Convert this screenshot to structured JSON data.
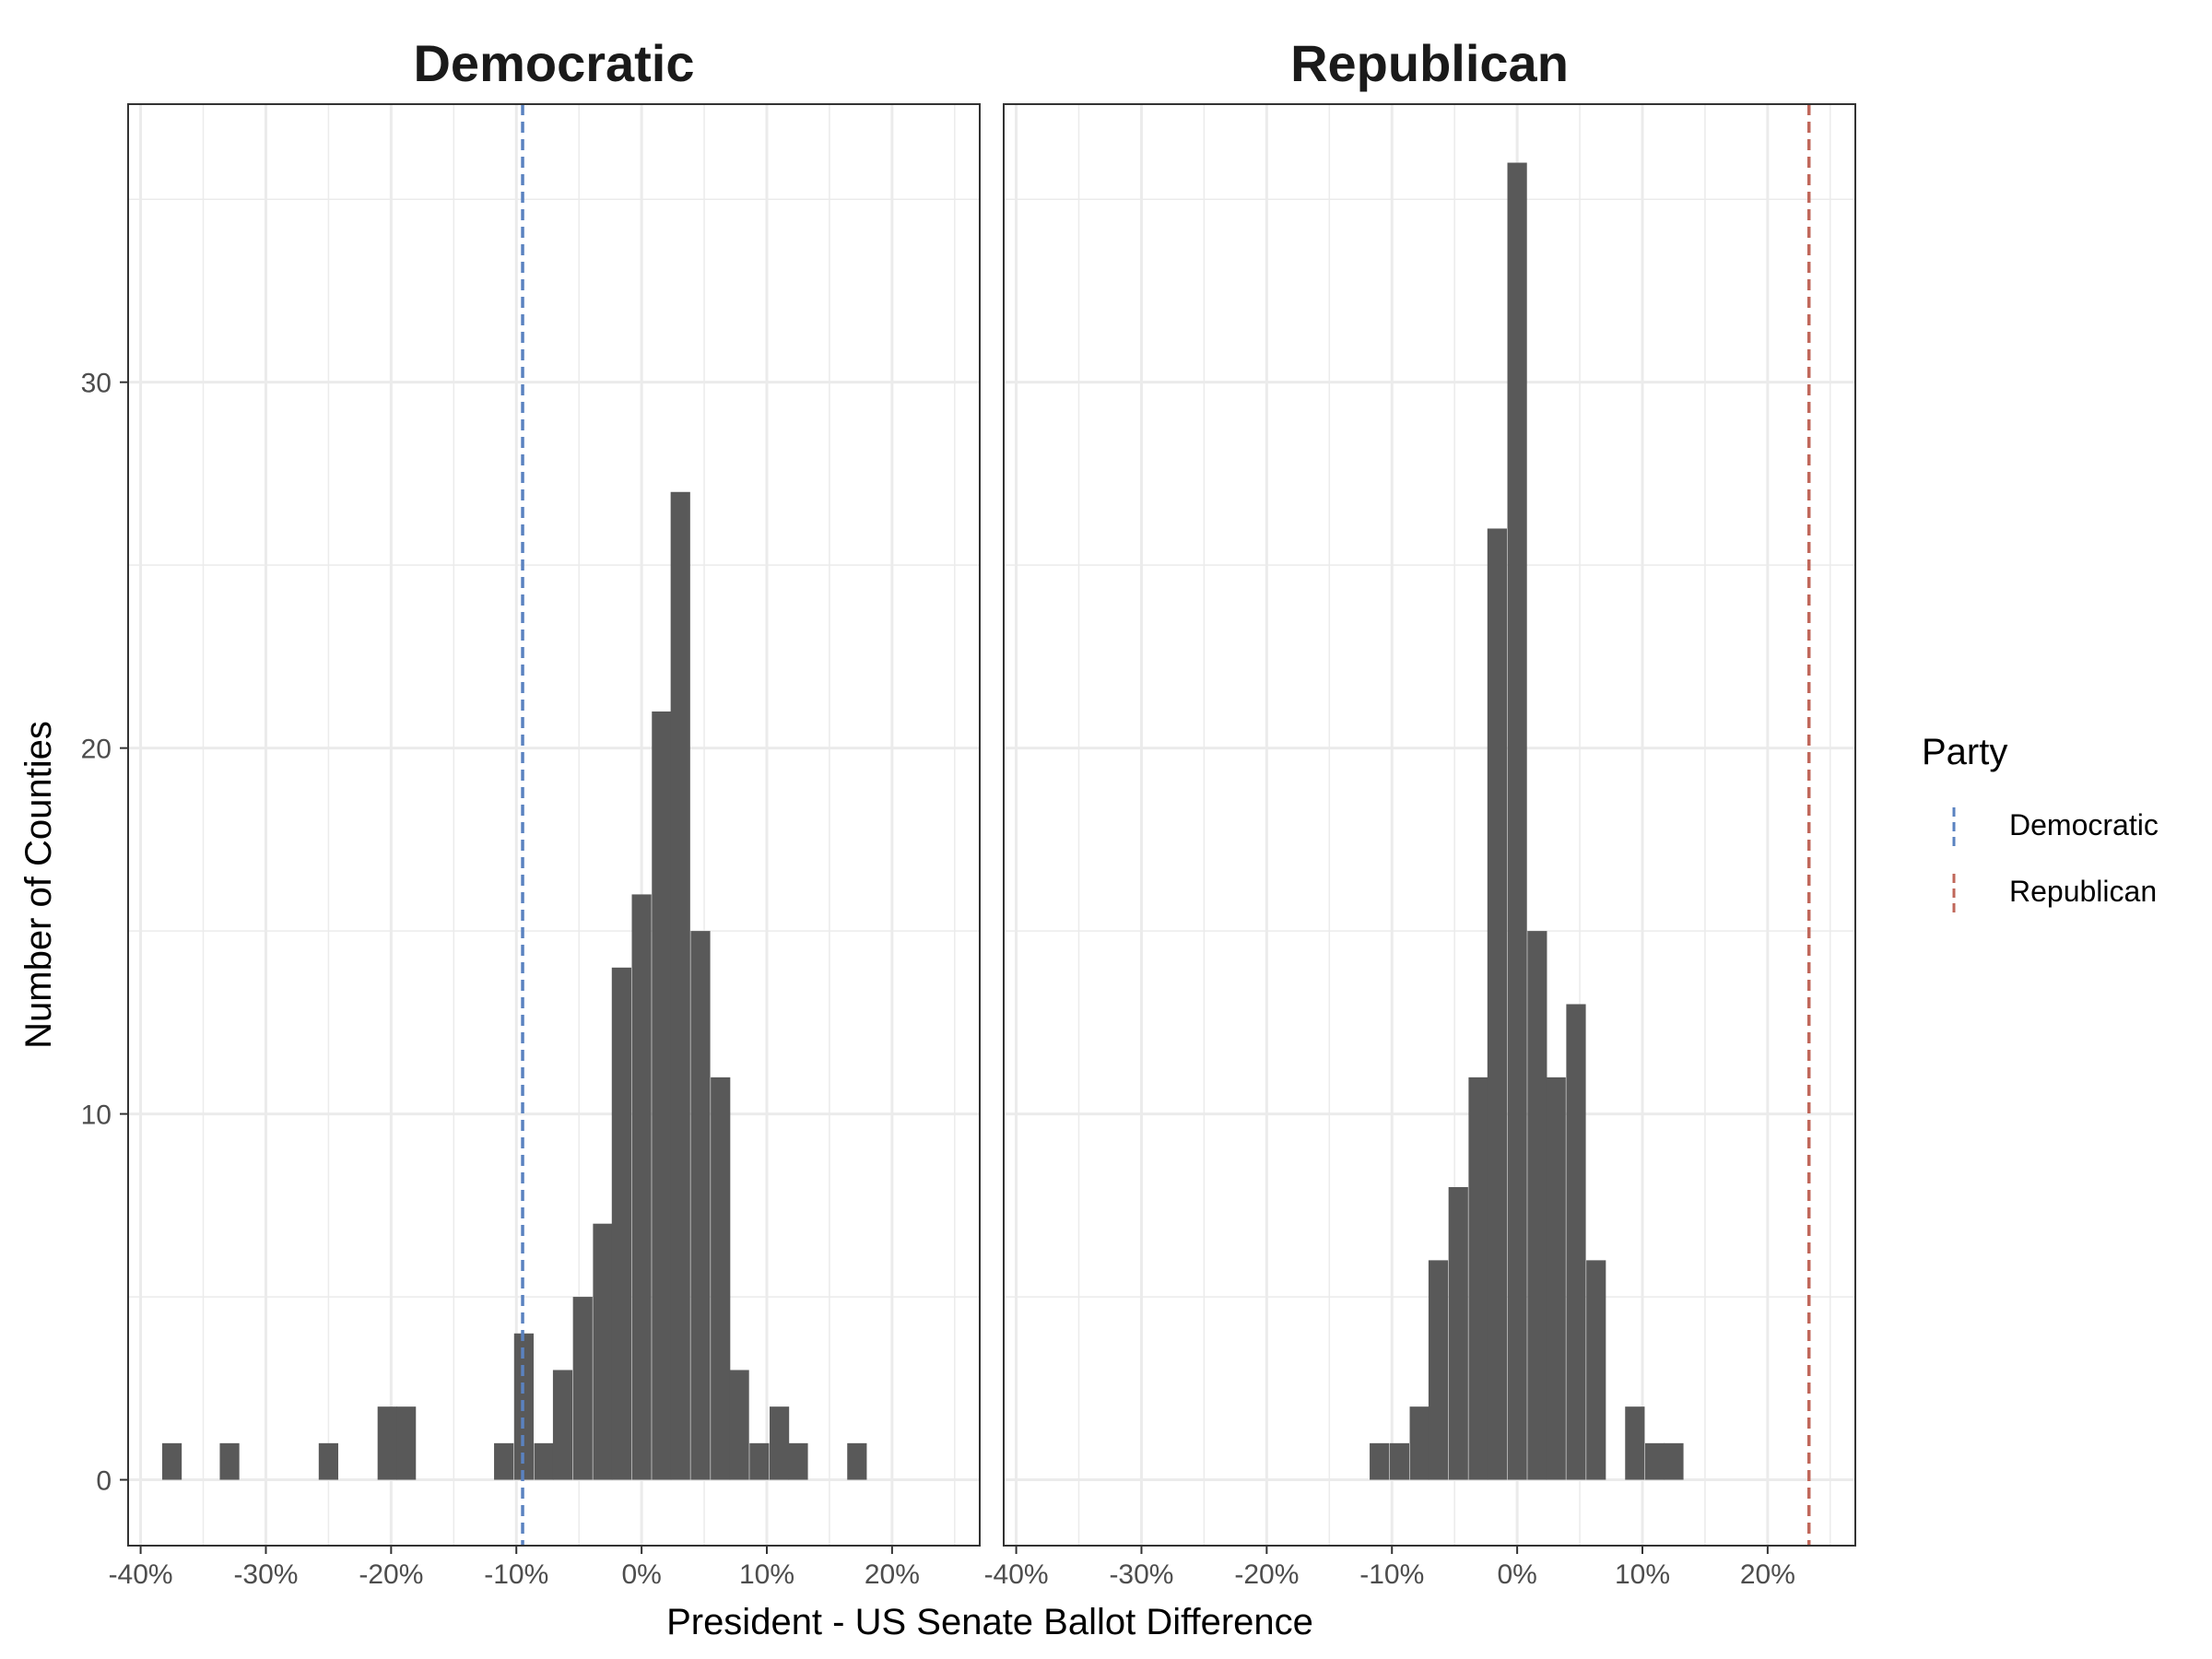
{
  "chart_data": {
    "type": "bar",
    "subtype": "histogram",
    "x_axis_title": "President - US Senate Ballot Difference",
    "y_axis_title": "Number of Counties",
    "x_ticks": [
      "-40%",
      "-30%",
      "-20%",
      "-10%",
      "0%",
      "10%",
      "20%"
    ],
    "x_tick_values": [
      -40,
      -30,
      -20,
      -10,
      0,
      10,
      20
    ],
    "y_ticks": [
      "0",
      "10",
      "20",
      "30"
    ],
    "y_tick_values": [
      0,
      10,
      20,
      30
    ],
    "xlim": [
      -41,
      27
    ],
    "ylim": [
      -1.8,
      37.6
    ],
    "bin_width": 1.56,
    "grid": true,
    "legend": {
      "title": "Party",
      "position": "right",
      "entries": [
        {
          "label": "Democratic",
          "color": "#5a82c0",
          "style": "dashed"
        },
        {
          "label": "Republican",
          "color": "#c0675a",
          "style": "dashed"
        }
      ]
    },
    "panels": [
      {
        "title": "Democratic",
        "reference_line": {
          "x": -9.5,
          "color": "#5a82c0",
          "style": "dashed"
        },
        "bins": [
          {
            "x": -37.5,
            "count": 1
          },
          {
            "x": -32.9,
            "count": 1
          },
          {
            "x": -25.0,
            "count": 1
          },
          {
            "x": -20.3,
            "count": 2
          },
          {
            "x": -18.8,
            "count": 2
          },
          {
            "x": -11.0,
            "count": 1
          },
          {
            "x": -9.4,
            "count": 4
          },
          {
            "x": -7.8,
            "count": 1
          },
          {
            "x": -6.3,
            "count": 3
          },
          {
            "x": -4.7,
            "count": 5
          },
          {
            "x": -3.1,
            "count": 7
          },
          {
            "x": -1.6,
            "count": 14
          },
          {
            "x": 0.0,
            "count": 16
          },
          {
            "x": 1.6,
            "count": 21
          },
          {
            "x": 3.1,
            "count": 27
          },
          {
            "x": 4.7,
            "count": 15
          },
          {
            "x": 6.3,
            "count": 11
          },
          {
            "x": 7.8,
            "count": 3
          },
          {
            "x": 9.4,
            "count": 1
          },
          {
            "x": 11.0,
            "count": 2
          },
          {
            "x": 12.5,
            "count": 1
          },
          {
            "x": 17.2,
            "count": 1
          }
        ]
      },
      {
        "title": "Republican",
        "reference_line": {
          "x": 23.3,
          "color": "#c0675a",
          "style": "dashed"
        },
        "bins": [
          {
            "x": -11.0,
            "count": 1
          },
          {
            "x": -9.4,
            "count": 1
          },
          {
            "x": -7.8,
            "count": 2
          },
          {
            "x": -6.3,
            "count": 6
          },
          {
            "x": -4.7,
            "count": 8
          },
          {
            "x": -3.1,
            "count": 11
          },
          {
            "x": -1.6,
            "count": 26
          },
          {
            "x": 0.0,
            "count": 36
          },
          {
            "x": 1.6,
            "count": 15
          },
          {
            "x": 3.1,
            "count": 11
          },
          {
            "x": 4.7,
            "count": 13
          },
          {
            "x": 6.3,
            "count": 6
          },
          {
            "x": 9.4,
            "count": 2
          },
          {
            "x": 11.0,
            "count": 1
          },
          {
            "x": 12.5,
            "count": 1
          }
        ]
      }
    ]
  }
}
